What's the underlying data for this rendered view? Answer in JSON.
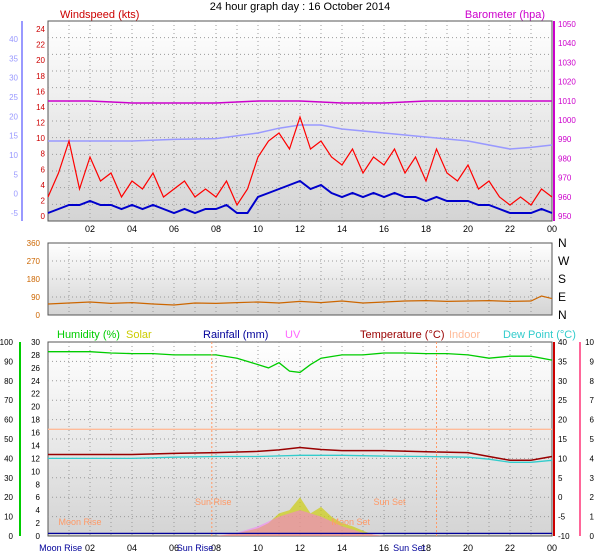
{
  "title": "24 hour graph day : 16 October 2014",
  "x_ticks": [
    "02",
    "04",
    "06",
    "08",
    "10",
    "12",
    "14",
    "16",
    "18",
    "20",
    "22",
    "00"
  ],
  "bottom_x_ticks": [
    "02",
    "04",
    "06",
    "08",
    "10",
    "12",
    "14",
    "16",
    "18",
    "20",
    "22",
    "00"
  ],
  "colors": {
    "windspeed": "#ff0000",
    "wind_avg": "#0000cc",
    "temperature_ref": "#9999ff",
    "barometer": "#cc00cc",
    "direction": "#cc6600",
    "humidity": "#00cc00",
    "solar": "#cccc00",
    "rainfall": "#000099",
    "uv": "#ff66ff",
    "temperature": "#990000",
    "indoor": "#ffbb99",
    "dewpoint": "#33cccc",
    "axis_left_blue": "#9999ff",
    "axis_left_green": "#00cc00",
    "axis_right_pink": "#ff6699",
    "panel_gradient_top": "#ffffff",
    "panel_gradient_bottom": "#d0d0d0"
  },
  "chart_data": [
    {
      "type": "line",
      "panel": "wind-barometer",
      "left_label": "Windspeed (kts)",
      "right_label": "Barometer (hpa)",
      "y_left_ticks": [
        "24",
        "22",
        "20",
        "18",
        "16",
        "14",
        "12",
        "10",
        "8",
        "6",
        "4",
        "2",
        "0"
      ],
      "y_left_outer_ticks": [
        "40",
        "35",
        "30",
        "25",
        "20",
        "15",
        "10",
        "5",
        "0",
        "-5"
      ],
      "y_right_ticks": [
        "1050",
        "1040",
        "1030",
        "1020",
        "1010",
        "1000",
        "990",
        "980",
        "970",
        "960",
        "950"
      ],
      "ylim_left": [
        0,
        25
      ],
      "ylim_right": [
        950,
        1050
      ],
      "series": [
        {
          "key": "barometer",
          "axis": "right",
          "x": [
            0,
            2,
            4,
            6,
            8,
            10,
            12,
            14,
            16,
            18,
            20,
            22,
            24
          ],
          "values": [
            1010,
            1010,
            1009,
            1009,
            1009,
            1010,
            1010,
            1009,
            1009,
            1010,
            1010,
            1010,
            1010
          ]
        },
        {
          "key": "temperature_ref",
          "axis": "left",
          "x": [
            0,
            2,
            4,
            6,
            8,
            10,
            11,
            12,
            13,
            14,
            16,
            18,
            20,
            22,
            23,
            24
          ],
          "values": [
            10,
            10,
            10,
            10.2,
            10.3,
            11,
            11.6,
            12,
            12,
            11.5,
            11,
            10.5,
            10,
            9,
            9.2,
            9.5
          ]
        },
        {
          "key": "windspeed",
          "axis": "left",
          "x": [
            0,
            0.5,
            1,
            1.5,
            2,
            2.5,
            3,
            3.5,
            4,
            4.5,
            5,
            5.5,
            6,
            6.5,
            7,
            7.5,
            8,
            8.5,
            9,
            9.5,
            10,
            10.5,
            11,
            11.5,
            12,
            12.5,
            13,
            13.5,
            14,
            14.5,
            15,
            15.5,
            16,
            16.5,
            17,
            17.5,
            18,
            18.5,
            19,
            19.5,
            20,
            20.5,
            21,
            21.5,
            22,
            22.5,
            23,
            23.5,
            24
          ],
          "values": [
            3,
            6,
            10,
            4,
            8,
            5,
            6,
            3,
            5,
            4,
            6,
            3,
            4,
            5,
            3,
            4,
            3,
            5,
            2,
            4,
            8,
            10,
            11,
            9,
            13,
            9,
            10,
            8,
            7,
            9,
            6,
            8,
            7,
            9,
            6,
            8,
            5,
            9,
            6,
            5,
            7,
            4,
            5,
            3,
            2,
            3,
            2,
            4,
            3
          ]
        },
        {
          "key": "wind_avg",
          "axis": "left",
          "x": [
            0,
            0.5,
            1,
            1.5,
            2,
            2.5,
            3,
            3.5,
            4,
            4.5,
            5,
            5.5,
            6,
            6.5,
            7,
            7.5,
            8,
            8.5,
            9,
            9.5,
            10,
            10.5,
            11,
            11.5,
            12,
            12.5,
            13,
            13.5,
            14,
            14.5,
            15,
            15.5,
            16,
            16.5,
            17,
            17.5,
            18,
            18.5,
            19,
            19.5,
            20,
            20.5,
            21,
            21.5,
            22,
            22.5,
            23,
            23.5,
            24
          ],
          "values": [
            1,
            1.5,
            2,
            2,
            2.5,
            2,
            2,
            1.5,
            2,
            1.5,
            2,
            1.5,
            1,
            1.5,
            1,
            1.5,
            1.5,
            2,
            1,
            1,
            3,
            3.5,
            4,
            4.5,
            5,
            4,
            4.5,
            3.5,
            3,
            3.5,
            3,
            3.5,
            3,
            3.5,
            3,
            3,
            2.5,
            3,
            2.5,
            2.5,
            2.5,
            2,
            2,
            1.5,
            1,
            1,
            1,
            1.5,
            1
          ]
        }
      ]
    },
    {
      "type": "line",
      "panel": "direction",
      "y_left_ticks": [
        "360",
        "270",
        "180",
        "90",
        "0"
      ],
      "y_right_ticks": [
        "N",
        "W",
        "S",
        "E",
        "N"
      ],
      "ylim_left": [
        0,
        360
      ],
      "series": [
        {
          "key": "direction",
          "axis": "left",
          "x": [
            0,
            1,
            2,
            3,
            4,
            5,
            6,
            7,
            8,
            9,
            10,
            11,
            12,
            13,
            14,
            15,
            16,
            17,
            18,
            19,
            20,
            21,
            22,
            23,
            23.5,
            24
          ],
          "values": [
            55,
            60,
            65,
            58,
            62,
            55,
            50,
            60,
            58,
            62,
            65,
            60,
            68,
            62,
            70,
            60,
            65,
            70,
            72,
            68,
            70,
            72,
            68,
            70,
            95,
            82
          ]
        }
      ]
    },
    {
      "type": "line",
      "panel": "temperature",
      "legend": [
        "Humidity (%)",
        "Solar",
        "Rainfall (mm)",
        "UV",
        "Temperature (°C)",
        "Indoor",
        "Dew Point (°C)"
      ],
      "y_left_outer_ticks": [
        "100",
        "90",
        "80",
        "70",
        "60",
        "50",
        "40",
        "30",
        "20",
        "10",
        "0"
      ],
      "y_left_inner_ticks": [
        "30",
        "28",
        "26",
        "24",
        "22",
        "20",
        "18",
        "16",
        "14",
        "12",
        "10",
        "8",
        "6",
        "4",
        "2",
        "0"
      ],
      "y_right_inner_ticks": [
        "40",
        "35",
        "30",
        "25",
        "20",
        "15",
        "10",
        "5",
        "0",
        "-5",
        "-10"
      ],
      "y_right_outer_ticks": [
        "10",
        "9",
        "8",
        "7",
        "6",
        "5",
        "4",
        "3",
        "2",
        "1",
        "0"
      ],
      "ylim_inner": [
        0,
        30
      ],
      "ylim_temp": [
        -10,
        40
      ],
      "annotations": [
        "Moon Rise",
        "Sun Rise",
        "Sun Set",
        "Moon Set"
      ],
      "bottom_marker_labels": [
        "Moon Rise",
        "Sun Rise",
        "Sun Set"
      ],
      "series": [
        {
          "key": "humidity",
          "axis": "inner",
          "x": [
            0,
            1,
            2,
            3,
            4,
            5,
            6,
            7,
            8,
            9,
            10,
            10.5,
            11,
            11.5,
            12,
            12.5,
            13,
            14,
            15,
            16,
            17,
            18,
            19,
            20,
            21,
            22,
            23,
            24
          ],
          "values": [
            28.5,
            28.5,
            28.5,
            28.3,
            28.2,
            28.2,
            28,
            28,
            28,
            27.5,
            26.5,
            26,
            26.8,
            25.5,
            25.3,
            26.5,
            27.5,
            28,
            28,
            28.3,
            28.3,
            28.2,
            28.2,
            28,
            27.5,
            27.8,
            27.8,
            27.2
          ]
        },
        {
          "key": "indoor",
          "axis": "temp",
          "x": [
            0,
            24
          ],
          "values": [
            17.5,
            17.5
          ]
        },
        {
          "key": "temperature",
          "axis": "temp",
          "x": [
            0,
            2,
            4,
            6,
            8,
            10,
            11,
            12,
            13,
            14,
            16,
            18,
            20,
            21,
            22,
            23,
            24
          ],
          "values": [
            11,
            11,
            11,
            11.3,
            11.5,
            11.8,
            12.2,
            12.8,
            12.3,
            12,
            12,
            11.7,
            11.5,
            10.5,
            9.5,
            9.5,
            10.5
          ]
        },
        {
          "key": "dewpoint",
          "axis": "temp",
          "x": [
            0,
            2,
            4,
            6,
            8,
            10,
            12,
            14,
            16,
            18,
            20,
            21,
            22,
            23,
            24
          ],
          "values": [
            10,
            10,
            10,
            10.3,
            10.5,
            10.5,
            10.8,
            10.8,
            10.6,
            10.5,
            10.3,
            9.8,
            9,
            9,
            9.5
          ]
        },
        {
          "key": "solar",
          "axis": "inner",
          "x": [
            7.5,
            8,
            9,
            10,
            10.5,
            11,
            11.5,
            12,
            12.5,
            13,
            13.5,
            14,
            14.5,
            15,
            15.5,
            16
          ],
          "values": [
            0,
            0,
            0.4,
            1.2,
            2,
            3.5,
            4,
            6,
            3.5,
            4.5,
            3,
            2,
            1.5,
            0.8,
            0.2,
            0
          ]
        },
        {
          "key": "uv",
          "axis": "inner",
          "x": [
            8,
            9,
            10,
            11,
            12,
            12.5,
            13,
            14,
            15,
            16
          ],
          "values": [
            0,
            0.5,
            1.5,
            3,
            4,
            3.5,
            3,
            1.5,
            0.5,
            0
          ]
        },
        {
          "key": "rainfall",
          "axis": "inner",
          "x": [
            0,
            24
          ],
          "values": [
            0.4,
            0.4
          ]
        }
      ]
    }
  ]
}
